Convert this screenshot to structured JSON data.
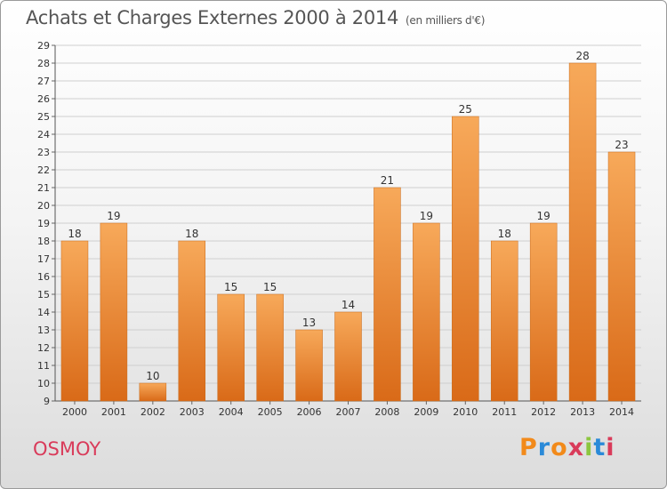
{
  "header": {
    "title": "Achats et Charges Externes 2000 à 2014",
    "subtitle": "(en milliers d'€)"
  },
  "footer": {
    "town": "OSMOY",
    "logo": "Proxiti"
  },
  "colors": {
    "bar_top": "#f7a95a",
    "bar_bottom": "#d96a18",
    "town": "#d93b5a",
    "logo_letters": [
      "#f28a1a",
      "#2a8ad8",
      "#f28a1a",
      "#d93b5a",
      "#8cc63f",
      "#2a8ad8",
      "#d93b5a"
    ]
  },
  "chart_data": {
    "type": "bar",
    "title": "Achats et Charges Externes 2000 à 2014",
    "subtitle": "(en milliers d'€)",
    "xlabel": "",
    "ylabel": "",
    "categories": [
      "2000",
      "2001",
      "2002",
      "2003",
      "2004",
      "2005",
      "2006",
      "2007",
      "2008",
      "2009",
      "2010",
      "2011",
      "2012",
      "2013",
      "2014"
    ],
    "values": [
      18,
      19,
      10,
      18,
      15,
      15,
      13,
      14,
      21,
      19,
      25,
      18,
      19,
      28,
      23
    ],
    "ylim": [
      9,
      29
    ],
    "yticks": [
      9,
      10,
      11,
      12,
      13,
      14,
      15,
      16,
      17,
      18,
      19,
      20,
      21,
      22,
      23,
      24,
      25,
      26,
      27,
      28,
      29
    ],
    "grid": true
  }
}
